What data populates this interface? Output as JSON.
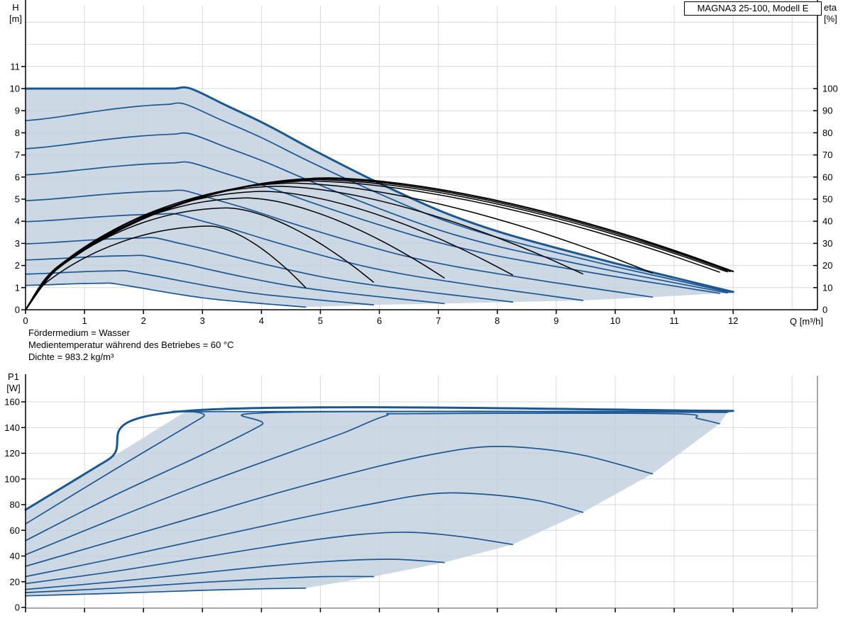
{
  "title_box": "MAGNA3 25-100, Modell E",
  "notes": [
    "Fördermedium = Wasser",
    "Medientemperatur während des Betriebes = 60 °C",
    "Dichte = 983.2 kg/m³"
  ],
  "axis_corner_labels": {
    "h": "H\n[m]",
    "eta": "eta\n[%]",
    "p1": "P1\n[W]",
    "q": "Q [m³/h]"
  },
  "colors": {
    "curve_blue": "#1b5791",
    "eta_black": "#000000",
    "fill_blue": "#bfcdde",
    "grid": "#d9d9d9",
    "axis": "#000000",
    "frame_gray": "#8c8c8c"
  },
  "chart_data": [
    {
      "id": "hq_eta",
      "type": "line",
      "title": "MAGNA3 25-100, Modell E",
      "xlabel": "Q [m³/h]",
      "x_axis": {
        "min": 0,
        "max": 13.43,
        "tick_labels": [
          0,
          1,
          2,
          3,
          4,
          5,
          6,
          7,
          8,
          9,
          10,
          11,
          12
        ],
        "grid_ticks": [
          1,
          2,
          3,
          4,
          5,
          6,
          7,
          8,
          9,
          10,
          11,
          12,
          13
        ]
      },
      "y_left": {
        "label": "H [m]",
        "min": 0,
        "max": 13.75,
        "tick_labels": [
          0,
          1,
          2,
          3,
          4,
          5,
          6,
          7,
          8,
          9,
          10,
          11
        ],
        "grid_ticks": [
          1,
          2,
          3,
          4,
          5,
          6,
          7,
          8,
          9,
          10,
          11,
          12,
          13
        ]
      },
      "y_right": {
        "label": "eta [%]",
        "min": 0,
        "max": 137.5,
        "tick_labels": [
          0,
          10,
          20,
          30,
          40,
          50,
          60,
          70,
          80,
          90,
          100
        ]
      },
      "fall_shape": {
        "s": [
          0,
          0.065,
          0.141,
          0.228,
          0.337,
          0.457,
          0.565,
          0.674,
          0.783,
          0.891,
          1
        ],
        "d": [
          0,
          0.082,
          0.179,
          0.304,
          0.451,
          0.598,
          0.701,
          0.783,
          0.859,
          0.929,
          1
        ]
      },
      "speed_curves": [
        {
          "h0": 10.0,
          "qh": 2.8,
          "hh": 10.0,
          "qe": 12.0,
          "he": 0.8
        },
        {
          "h0": 8.55,
          "qh": 2.7,
          "hh": 9.3,
          "qe": 11.95,
          "he": 0.78
        },
        {
          "h0": 7.28,
          "qh": 2.8,
          "hh": 7.95,
          "qe": 11.9,
          "he": 0.76
        },
        {
          "h0": 6.1,
          "qh": 2.8,
          "hh": 6.65,
          "qe": 11.77,
          "he": 0.74
        },
        {
          "h0": 4.93,
          "qh": 2.7,
          "hh": 5.38,
          "qe": 10.63,
          "he": 0.57
        },
        {
          "h0": 3.98,
          "qh": 2.55,
          "hh": 4.33,
          "qe": 9.45,
          "he": 0.42
        },
        {
          "h0": 2.98,
          "qh": 2.2,
          "hh": 3.25,
          "qe": 8.26,
          "he": 0.35
        },
        {
          "h0": 2.25,
          "qh": 2.0,
          "hh": 2.45,
          "qe": 7.1,
          "he": 0.28
        },
        {
          "h0": 1.61,
          "qh": 1.7,
          "hh": 1.76,
          "qe": 5.9,
          "he": 0.22
        },
        {
          "h0": 1.1,
          "qh": 1.45,
          "hh": 1.2,
          "qe": 4.75,
          "he": 0.12
        }
      ],
      "eta_curves": [
        {
          "qp": 5.2,
          "p": 59.5,
          "qe": 12.0,
          "pe": 17.3
        },
        {
          "qp": 5.1,
          "p": 59.2,
          "qe": 11.95,
          "pe": 17.2
        },
        {
          "qp": 5.0,
          "p": 58.8,
          "qe": 11.9,
          "pe": 17.1
        },
        {
          "qp": 4.9,
          "p": 58.2,
          "qe": 11.77,
          "pe": 17.0
        },
        {
          "qp": 4.6,
          "p": 57.2,
          "qe": 10.63,
          "pe": 16.6
        },
        {
          "qp": 4.35,
          "p": 55.8,
          "qe": 9.45,
          "pe": 16.2
        },
        {
          "qp": 4.1,
          "p": 53.5,
          "qe": 8.26,
          "pe": 15.7
        },
        {
          "qp": 3.8,
          "p": 50.5,
          "qe": 7.1,
          "pe": 14.4
        },
        {
          "qp": 3.45,
          "p": 46.0,
          "qe": 5.9,
          "pe": 12.5
        },
        {
          "qp": 3.15,
          "p": 37.8,
          "qe": 4.75,
          "pe": 10.0
        }
      ],
      "envelope_edge": [
        [
          11.95,
          0.78
        ],
        [
          11.9,
          0.76
        ],
        [
          11.77,
          0.74
        ],
        [
          10.63,
          0.57
        ],
        [
          9.45,
          0.42
        ],
        [
          8.26,
          0.35
        ],
        [
          7.1,
          0.28
        ],
        [
          5.9,
          0.22
        ],
        [
          4.75,
          0.12
        ]
      ]
    },
    {
      "id": "p1",
      "type": "line",
      "x_axis": {
        "min": 0,
        "max": 13.43,
        "grid_ticks": [
          1,
          2,
          3,
          4,
          5,
          6,
          7,
          8,
          9,
          10,
          11,
          12,
          13
        ],
        "tick_marks": [
          0,
          1,
          2,
          3,
          4,
          5,
          6,
          7,
          8,
          9,
          10,
          11,
          12,
          13
        ]
      },
      "y_left": {
        "label": "P1 [W]",
        "min": 0,
        "max": 180,
        "tick_labels": [
          0,
          20,
          40,
          60,
          80,
          100,
          120,
          140,
          160
        ]
      },
      "power_curves": [
        {
          "points": [
            [
              0,
              76
            ],
            [
              1.4,
              115
            ],
            [
              2.73,
              153
            ],
            [
              12,
              153
            ]
          ]
        },
        {
          "points": [
            [
              0,
              65
            ],
            [
              1.5,
              107
            ],
            [
              3,
              148
            ],
            [
              3.13,
              152.4
            ],
            [
              11.95,
              152.4
            ]
          ]
        },
        {
          "points": [
            [
              0,
              52
            ],
            [
              1.5,
              87
            ],
            [
              3,
              119
            ],
            [
              4,
              142
            ],
            [
              4.27,
              151.8
            ],
            [
              11.9,
              151.8
            ]
          ]
        },
        {
          "points": [
            [
              0,
              41
            ],
            [
              1.5,
              69
            ],
            [
              3,
              96
            ],
            [
              4.5,
              121
            ],
            [
              5.4,
              136
            ],
            [
              6.1,
              149
            ],
            [
              6.6,
              150.8
            ],
            [
              10.9,
              150.8
            ],
            [
              11.4,
              147
            ],
            [
              11.77,
              143
            ]
          ]
        },
        {
          "points": [
            [
              0,
              32
            ],
            [
              1.5,
              52
            ],
            [
              3,
              72
            ],
            [
              4.5,
              92
            ],
            [
              6,
              110
            ],
            [
              7,
              120
            ],
            [
              7.8,
              125
            ],
            [
              8.6,
              124
            ],
            [
              9.5,
              118
            ],
            [
              10.63,
              104
            ]
          ]
        },
        {
          "points": [
            [
              0,
              24
            ],
            [
              1.5,
              38
            ],
            [
              3,
              53
            ],
            [
              4.5,
              68
            ],
            [
              5.8,
              80
            ],
            [
              6.9,
              88.5
            ],
            [
              7.8,
              88
            ],
            [
              8.7,
              83
            ],
            [
              9.45,
              74
            ]
          ]
        },
        {
          "points": [
            [
              0,
              18.5
            ],
            [
              1.5,
              28
            ],
            [
              3,
              39
            ],
            [
              4.5,
              50
            ],
            [
              5.6,
              56.5
            ],
            [
              6.5,
              58.5
            ],
            [
              7.4,
              55
            ],
            [
              8.26,
              49
            ]
          ]
        },
        {
          "points": [
            [
              0,
              14
            ],
            [
              1.5,
              20
            ],
            [
              3,
              27
            ],
            [
              4.2,
              32.5
            ],
            [
              5.2,
              36
            ],
            [
              6.2,
              37.5
            ],
            [
              7.1,
              35
            ]
          ]
        },
        {
          "points": [
            [
              0,
              11.5
            ],
            [
              1.5,
              15
            ],
            [
              3,
              19.5
            ],
            [
              4.2,
              22.5
            ],
            [
              5.1,
              24
            ],
            [
              5.9,
              24
            ]
          ]
        },
        {
          "points": [
            [
              0,
              9
            ],
            [
              1.5,
              11
            ],
            [
              3,
              13.3
            ],
            [
              4,
              14.5
            ],
            [
              4.75,
              15
            ]
          ]
        }
      ],
      "envelope_edge": [
        [
          11.95,
          152.4
        ],
        [
          11.9,
          151.8
        ],
        [
          11.77,
          143
        ],
        [
          10.63,
          104
        ],
        [
          9.45,
          74
        ],
        [
          8.26,
          49
        ],
        [
          7.1,
          35
        ],
        [
          5.9,
          24
        ],
        [
          4.75,
          15
        ]
      ]
    }
  ]
}
